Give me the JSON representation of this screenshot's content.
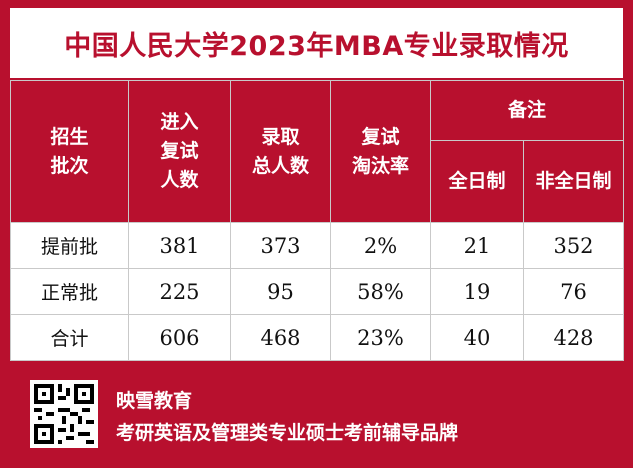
{
  "title": "中国人民大学2023年MBA专业录取情况",
  "headers": {
    "batch": "招生\n批次",
    "retest": "进入\n复试\n人数",
    "admitted": "录取\n总人数",
    "elimination": "复试\n淘汰率",
    "remarks": "备注",
    "full_time": "全日制",
    "part_time": "非全日制"
  },
  "rows": [
    {
      "batch": "提前批",
      "retest": "381",
      "admitted": "373",
      "elimination": "2%",
      "full_time": "21",
      "part_time": "352"
    },
    {
      "batch": "正常批",
      "retest": "225",
      "admitted": "95",
      "elimination": "58%",
      "full_time": "19",
      "part_time": "76"
    },
    {
      "batch": "合计",
      "retest": "606",
      "admitted": "468",
      "elimination": "23%",
      "full_time": "40",
      "part_time": "428"
    }
  ],
  "footer": {
    "brand": "映雪教育",
    "slogan": "考研英语及管理类专业硕士考前辅导品牌"
  },
  "colors": {
    "accent": "#b8102e"
  },
  "icons": {
    "qr": "qr-code-icon"
  }
}
